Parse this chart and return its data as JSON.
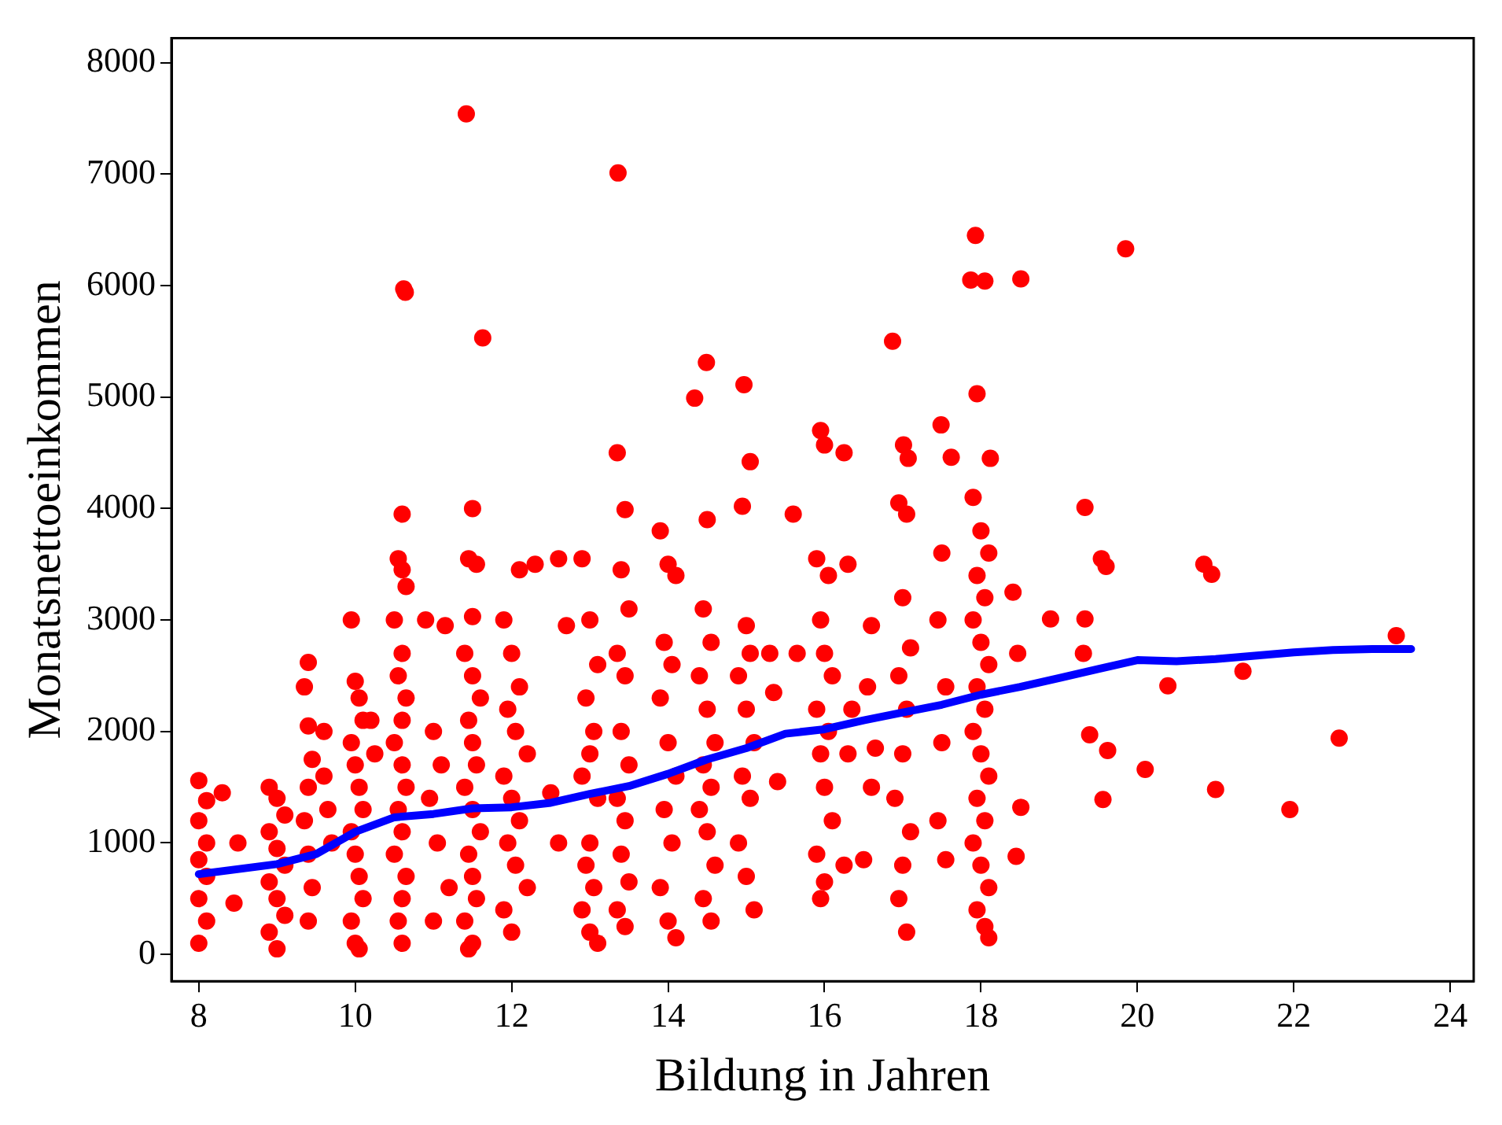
{
  "chart_data": {
    "type": "scatter",
    "xlabel": "Bildung in Jahren",
    "ylabel": "Monatsnettoeinkommen",
    "xlim": [
      7.65,
      24.3
    ],
    "xticks": [
      8,
      10,
      12,
      14,
      16,
      18,
      20,
      22,
      24
    ],
    "ylim": [
      -240,
      8220
    ],
    "yticks": [
      0,
      1000,
      2000,
      3000,
      4000,
      5000,
      6000,
      7000,
      8000
    ],
    "grid": false,
    "legend": false,
    "marker": "circle",
    "series": [
      {
        "color": "#ff0000",
        "x": [
          8,
          8,
          8,
          8,
          8,
          8.1,
          8.1,
          8.1,
          8.1,
          8.3,
          8.5,
          8.45,
          8.9,
          9.0,
          9.1,
          8.9,
          9.0,
          9.1,
          8.9,
          9.0,
          9.1,
          8.9,
          9.0,
          9.4,
          9.35,
          9.4,
          9.45,
          9.4,
          9.35,
          9.4,
          9.45,
          9.4,
          9.6,
          9.65,
          9.6,
          9.7,
          9.95,
          10.0,
          10.05,
          10.1,
          9.95,
          10.0,
          10.05,
          10.1,
          9.95,
          10.0,
          10.05,
          10.1,
          9.95,
          10.0,
          10.05,
          10.2,
          10.25,
          10.62,
          10.64,
          10.6,
          10.55,
          10.6,
          10.65,
          10.5,
          10.6,
          10.55,
          10.65,
          10.6,
          10.5,
          10.6,
          10.65,
          10.55,
          10.6,
          10.5,
          10.65,
          10.6,
          10.55,
          10.6,
          10.9,
          11.0,
          11.1,
          10.95,
          11.05,
          11.2,
          11.0,
          11.15,
          11.42,
          11.63,
          11.5,
          11.45,
          11.55,
          11.5,
          11.4,
          11.5,
          11.6,
          11.45,
          11.5,
          11.55,
          11.4,
          11.5,
          11.6,
          11.45,
          11.5,
          11.55,
          11.4,
          11.5,
          11.45,
          11.9,
          12.0,
          12.1,
          11.95,
          12.05,
          12.2,
          11.9,
          12.0,
          12.1,
          11.95,
          12.05,
          12.2,
          11.9,
          12.0,
          12.3,
          12.1,
          12.6,
          12.7,
          12.5,
          12.6,
          12.9,
          13.0,
          13.1,
          12.95,
          13.05,
          13.0,
          12.9,
          13.1,
          13.0,
          12.95,
          13.05,
          12.9,
          13.0,
          13.1,
          13.36,
          13.35,
          13.45,
          13.4,
          13.5,
          13.35,
          13.45,
          13.4,
          13.5,
          13.35,
          13.45,
          13.4,
          13.5,
          13.35,
          13.45,
          13.9,
          14.0,
          14.1,
          13.95,
          14.05,
          13.9,
          14.0,
          14.1,
          13.95,
          14.05,
          13.9,
          14.0,
          14.1,
          14.34,
          14.49,
          14.5,
          14.45,
          14.55,
          14.4,
          14.5,
          14.6,
          14.45,
          14.55,
          14.4,
          14.5,
          14.6,
          14.45,
          14.55,
          14.97,
          15.05,
          14.95,
          15.0,
          15.05,
          14.9,
          15.0,
          15.1,
          14.95,
          15.05,
          14.9,
          15.0,
          15.1,
          15.3,
          15.35,
          15.4,
          15.6,
          15.65,
          15.95,
          16.0,
          15.9,
          16.05,
          15.95,
          16.0,
          16.1,
          15.9,
          16.05,
          15.95,
          16.0,
          16.1,
          15.9,
          16.0,
          15.95,
          16.25,
          16.3,
          16.35,
          16.3,
          16.25,
          16.6,
          16.55,
          16.65,
          16.6,
          16.5,
          16.87,
          17.01,
          17.07,
          16.95,
          17.05,
          17.0,
          17.1,
          16.95,
          17.05,
          17.0,
          16.9,
          17.1,
          17.0,
          16.95,
          17.05,
          17.49,
          17.62,
          17.5,
          17.45,
          17.55,
          17.5,
          17.45,
          17.55,
          17.93,
          17.87,
          18.05,
          17.95,
          18.12,
          17.9,
          18.0,
          18.1,
          17.95,
          18.05,
          17.9,
          18.0,
          18.1,
          17.95,
          18.05,
          17.9,
          18.0,
          18.1,
          17.95,
          18.05,
          17.9,
          18.0,
          18.1,
          17.95,
          18.05,
          18.1,
          18.51,
          18.41,
          18.47,
          18.51,
          18.45,
          18.89,
          19.33,
          19.33,
          19.31,
          19.85,
          19.54,
          19.6,
          20.85,
          20.95,
          23.31,
          21.35,
          20.39,
          20.1,
          22.58,
          21.0,
          21.95,
          19.56,
          19.39,
          19.62
        ],
        "values": [
          1560,
          1200,
          850,
          500,
          100,
          1380,
          1000,
          700,
          300,
          1450,
          1000,
          460,
          1500,
          1400,
          1250,
          1100,
          950,
          800,
          650,
          500,
          350,
          200,
          50,
          2620,
          2400,
          2050,
          1750,
          1500,
          1200,
          900,
          600,
          300,
          1600,
          1300,
          2000,
          1000,
          3000,
          2450,
          2300,
          2100,
          1900,
          1700,
          1500,
          1300,
          1100,
          900,
          700,
          500,
          300,
          100,
          50,
          2100,
          1800,
          5970,
          5940,
          3950,
          3550,
          3450,
          3300,
          3000,
          2700,
          2500,
          2300,
          2100,
          1900,
          1700,
          1500,
          1300,
          1100,
          900,
          700,
          500,
          300,
          100,
          3000,
          2000,
          1700,
          1400,
          1000,
          600,
          300,
          2950,
          7540,
          5530,
          4000,
          3550,
          3500,
          3030,
          2700,
          2500,
          2300,
          2100,
          1900,
          1700,
          1500,
          1300,
          1100,
          900,
          700,
          500,
          300,
          100,
          50,
          3000,
          2700,
          2400,
          2200,
          2000,
          1800,
          1600,
          1400,
          1200,
          1000,
          800,
          600,
          400,
          200,
          3500,
          3450,
          3550,
          2950,
          1450,
          1000,
          3550,
          3000,
          2600,
          2300,
          2000,
          1800,
          1600,
          1400,
          1000,
          800,
          600,
          400,
          200,
          100,
          7010,
          4500,
          3990,
          3450,
          3100,
          2700,
          2500,
          2000,
          1700,
          1400,
          1200,
          900,
          650,
          400,
          250,
          3800,
          3500,
          3400,
          2800,
          2600,
          2300,
          1900,
          1600,
          1300,
          1000,
          600,
          300,
          150,
          4990,
          5310,
          3900,
          3100,
          2800,
          2500,
          2200,
          1900,
          1700,
          1500,
          1300,
          1100,
          800,
          500,
          300,
          5110,
          4420,
          4020,
          2950,
          2700,
          2500,
          2200,
          1900,
          1600,
          1400,
          1000,
          700,
          400,
          2700,
          2350,
          1550,
          3950,
          2700,
          4700,
          4570,
          3550,
          3400,
          3000,
          2700,
          2500,
          2200,
          2000,
          1800,
          1500,
          1200,
          900,
          650,
          500,
          4500,
          3500,
          2200,
          1800,
          800,
          2950,
          2400,
          1850,
          1500,
          850,
          5500,
          4570,
          4450,
          4050,
          3950,
          3200,
          2750,
          2500,
          2200,
          1800,
          1400,
          1100,
          800,
          500,
          200,
          4750,
          4460,
          3600,
          3000,
          2400,
          1900,
          1200,
          850,
          6450,
          6050,
          6040,
          5030,
          4450,
          4100,
          3800,
          3600,
          3400,
          3200,
          3000,
          2800,
          2600,
          2400,
          2200,
          2000,
          1800,
          1600,
          1400,
          1200,
          1000,
          800,
          600,
          400,
          250,
          150,
          6060,
          3250,
          2700,
          1320,
          880,
          3010,
          4010,
          3010,
          2700,
          6330,
          3550,
          3480,
          3500,
          3410,
          2860,
          2540,
          2410,
          1660,
          1940,
          1480,
          1300,
          1390,
          1970,
          1830
        ]
      },
      {
        "type": "line",
        "color": "#0000ff",
        "marker": "none",
        "line_style": "solid",
        "x": [
          8,
          9,
          9.5,
          10,
          10.5,
          11,
          11.5,
          12,
          12.5,
          13,
          13.5,
          14,
          14.5,
          15,
          15.5,
          16,
          16.5,
          17,
          17.5,
          18,
          18.5,
          19,
          19.5,
          20,
          20.5,
          21,
          21.5,
          22,
          22.5,
          23,
          23.5
        ],
        "values": [
          720,
          810,
          900,
          1100,
          1230,
          1260,
          1310,
          1320,
          1360,
          1440,
          1510,
          1620,
          1750,
          1850,
          1980,
          2020,
          2100,
          2170,
          2240,
          2330,
          2400,
          2480,
          2560,
          2640,
          2630,
          2650,
          2680,
          2710,
          2730,
          2740,
          2740
        ]
      }
    ]
  }
}
